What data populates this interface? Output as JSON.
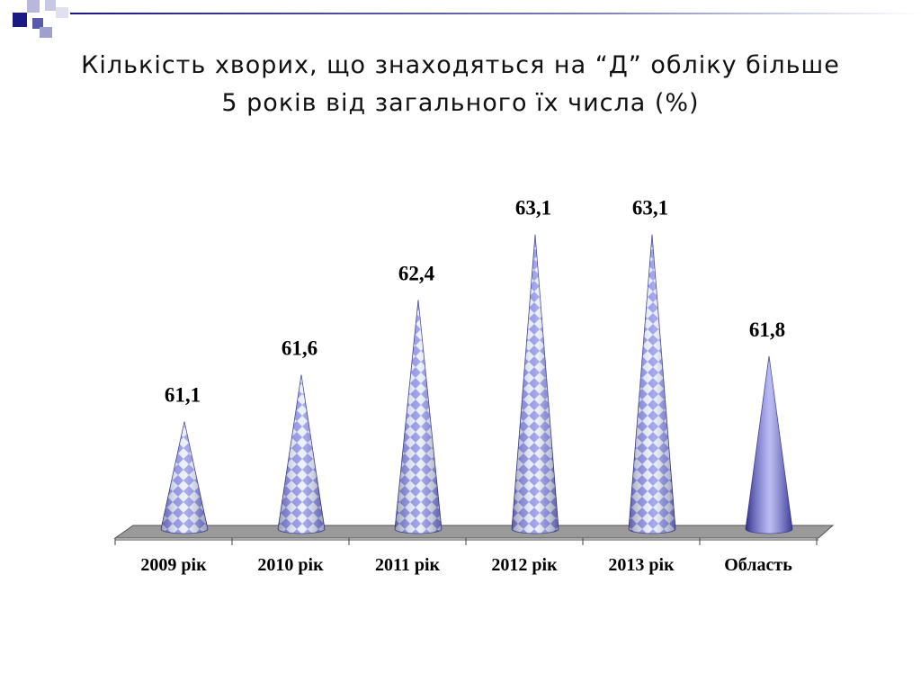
{
  "slide": {
    "title_line1": "Кількість хворих, що знаходяться на “Д” обліку більше",
    "title_line2": "5 років від загального їх числа (%)"
  },
  "colors": {
    "deco_dark": "#1a1a80",
    "deco_light": "#9090cc",
    "cone_light": "#e6ecf9",
    "cone_pattern": "#8c8fe6",
    "cone_last": "#7777dd",
    "floor": "#9a9a9a"
  },
  "chart_data": {
    "type": "bar",
    "shape": "cone",
    "categories": [
      "2009 рік",
      "2010 рік",
      "2011 рік",
      "2012 рік",
      "2013 рік",
      "Область"
    ],
    "values": [
      61.1,
      61.6,
      62.4,
      63.1,
      63.1,
      61.8
    ],
    "value_labels": [
      "61,1",
      "61,6",
      "62,4",
      "63,1",
      "63,1",
      "61,8"
    ],
    "title": "",
    "xlabel": "",
    "ylabel": "",
    "legend": "none",
    "grid": false
  }
}
